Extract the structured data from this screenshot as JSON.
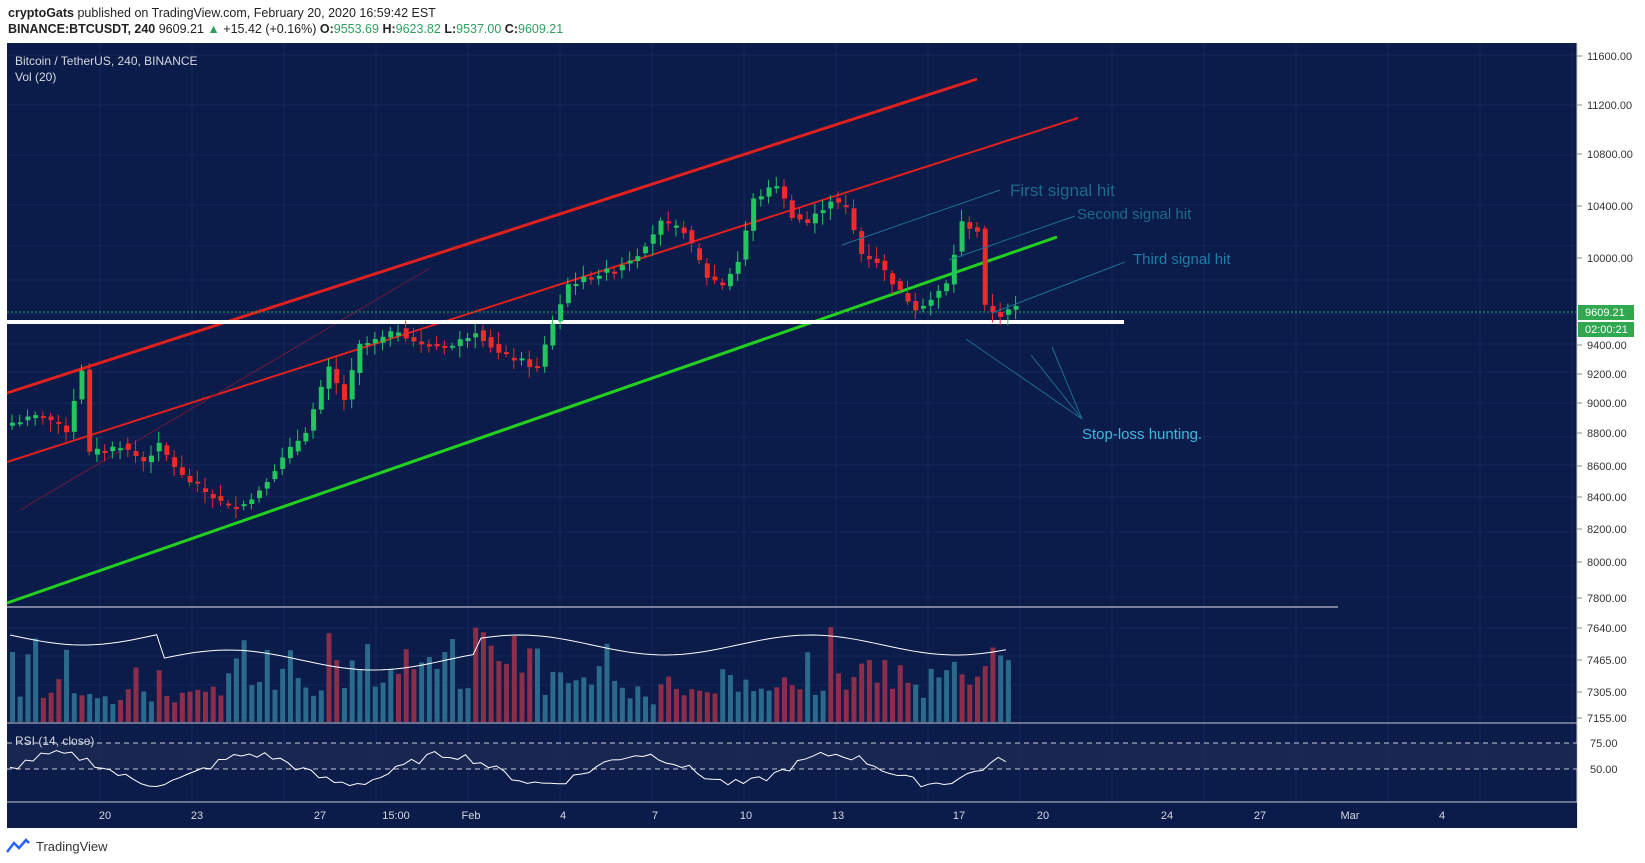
{
  "header": {
    "author": "cryptoGats",
    "published_text": " published on TradingView.com, February 20, 2020 16:59:42 EST",
    "symbol": "BINANCE:BTCUSDT, 240",
    "last": "9609.21",
    "change_arrow": "▲",
    "change": "+15.42 (+0.16%)",
    "o_label": "O:",
    "o_val": "9553.69",
    "h_label": "H:",
    "h_val": "9623.82",
    "l_label": "L:",
    "l_val": "9537.00",
    "c_label": "C:",
    "c_val": "9609.21"
  },
  "chart_data": {
    "type": "candlestick",
    "title": "Bitcoin / TetherUS, 240, BINANCE",
    "vol_label": "Vol (20)",
    "rsi_label": "RSI (14, close)",
    "price_ticks": [
      "11600.00",
      "11200.00",
      "10800.00",
      "10400.00",
      "10000.00",
      "9400.00",
      "9200.00",
      "9000.00",
      "8800.00",
      "8600.00",
      "8400.00",
      "8200.00",
      "8000.00",
      "7800.00",
      "7640.00",
      "7465.00",
      "7305.00",
      "7155.00"
    ],
    "rsi_ticks": [
      "75.00",
      "50.00"
    ],
    "x_ticks": [
      "20",
      "23",
      "27",
      "15:00",
      "Feb",
      "4",
      "7",
      "10",
      "13",
      "17",
      "20",
      "24",
      "27",
      "Mar",
      "4"
    ],
    "current_price": "9609.21",
    "countdown": "02:00:21",
    "support_level": 9550,
    "annotations": [
      "First signal hit",
      "Second signal hit",
      "Third signal hit",
      "Stop-loss hunting."
    ],
    "price_path": [
      [
        0,
        8850
      ],
      [
        4,
        8900
      ],
      [
        7,
        8800
      ],
      [
        9,
        9200
      ],
      [
        10,
        8650
      ],
      [
        14,
        8700
      ],
      [
        17,
        8600
      ],
      [
        19,
        8700
      ],
      [
        22,
        8500
      ],
      [
        25,
        8400
      ],
      [
        28,
        8300
      ],
      [
        31,
        8350
      ],
      [
        34,
        8550
      ],
      [
        38,
        8800
      ],
      [
        41,
        9200
      ],
      [
        43,
        9000
      ],
      [
        45,
        9350
      ],
      [
        48,
        9400
      ],
      [
        50,
        9450
      ],
      [
        53,
        9350
      ],
      [
        57,
        9350
      ],
      [
        60,
        9450
      ],
      [
        63,
        9300
      ],
      [
        66,
        9250
      ],
      [
        68,
        9200
      ],
      [
        70,
        9500
      ],
      [
        72,
        9750
      ],
      [
        75,
        9800
      ],
      [
        78,
        9850
      ],
      [
        81,
        9950
      ],
      [
        84,
        10150
      ],
      [
        87,
        10100
      ],
      [
        90,
        9800
      ],
      [
        92,
        9750
      ],
      [
        94,
        9900
      ],
      [
        96,
        10300
      ],
      [
        99,
        10400
      ],
      [
        101,
        10200
      ],
      [
        103,
        10150
      ],
      [
        106,
        10300
      ],
      [
        108,
        10250
      ],
      [
        110,
        9950
      ],
      [
        112,
        9900
      ],
      [
        115,
        9700
      ],
      [
        117,
        9600
      ],
      [
        119,
        9650
      ],
      [
        121,
        9750
      ],
      [
        123,
        10150
      ],
      [
        125,
        10100
      ],
      [
        126,
        9600
      ],
      [
        128,
        9550
      ],
      [
        130,
        9600
      ]
    ],
    "volume_values": [
      65,
      40,
      55,
      60,
      35,
      30,
      45,
      80,
      40,
      30,
      35,
      30,
      35,
      25,
      30,
      40,
      55,
      35,
      30,
      45,
      35,
      30,
      40,
      45,
      30,
      35,
      35,
      40,
      45,
      50,
      60,
      40,
      40,
      65,
      45,
      40,
      70,
      55,
      35,
      40,
      45,
      80,
      55,
      45,
      50,
      45,
      60,
      40,
      35,
      50,
      40,
      55,
      45,
      65,
      50,
      45,
      60,
      60,
      55,
      50,
      85,
      65,
      55,
      75,
      90,
      70,
      60,
      65,
      55,
      40
    ]
  }
}
